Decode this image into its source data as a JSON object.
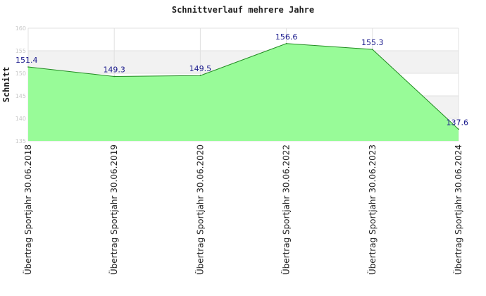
{
  "chart_data": {
    "type": "area",
    "title": "Schnittverlauf mehrere Jahre",
    "xlabel": "",
    "ylabel": "Schnitt",
    "ylim": [
      135,
      160
    ],
    "yticks": [
      135,
      140,
      145,
      150,
      155,
      160
    ],
    "grid": true,
    "categories": [
      "Übertrag Sportjahr 30.06.2018",
      "Übertrag Sportjahr 30.06.2019",
      "Übertrag Sportjahr 30.06.2020",
      "Übertrag Sportjahr 30.06.2022",
      "Übertrag Sportjahr 30.06.2023",
      "Übertrag Sportjahr 30.06.2024"
    ],
    "values": [
      151.4,
      149.3,
      149.5,
      156.6,
      155.3,
      137.6
    ],
    "value_labels": [
      "151.4",
      "149.3",
      "149.5",
      "156.6",
      "155.3",
      "137.6"
    ],
    "colors": {
      "fill": "#98fb98",
      "line": "#228b22",
      "band": "#f2f2f2",
      "grid": "#e0e0e0",
      "value_label": "#1a1a8c"
    }
  }
}
